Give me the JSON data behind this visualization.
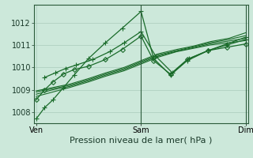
{
  "background_color": "#cce8da",
  "grid_color": "#aaccbb",
  "line_color": "#1a6b2a",
  "xlabel": "Pression niveau de la mer( hPa )",
  "xlabel_fontsize": 8,
  "tick_label_fontsize": 7,
  "xtick_labels": [
    "Ven",
    "Sam",
    "Dim"
  ],
  "xtick_positions": [
    0.0,
    0.5,
    1.0
  ],
  "ylim": [
    1007.5,
    1012.8
  ],
  "yticks": [
    1008,
    1009,
    1010,
    1011,
    1012
  ],
  "series": [
    {
      "x": [
        0.0,
        0.04,
        0.08,
        0.13,
        0.18,
        0.25,
        0.33,
        0.41,
        0.5,
        0.56,
        0.64,
        0.72,
        0.82,
        0.91,
        1.0
      ],
      "y": [
        1007.7,
        1008.2,
        1008.55,
        1009.1,
        1009.65,
        1010.4,
        1011.1,
        1011.75,
        1012.5,
        1010.4,
        1009.65,
        1010.3,
        1010.75,
        1011.05,
        1011.35
      ],
      "marker": "+",
      "ms": 4,
      "lw": 0.9
    },
    {
      "x": [
        0.04,
        0.09,
        0.14,
        0.19,
        0.27,
        0.35,
        0.42,
        0.5,
        0.57,
        0.65,
        0.73,
        0.82,
        0.91,
        1.0
      ],
      "y": [
        1009.55,
        1009.75,
        1009.95,
        1010.1,
        1010.35,
        1010.7,
        1011.1,
        1011.6,
        1010.5,
        1009.75,
        1010.4,
        1010.75,
        1011.0,
        1011.25
      ],
      "marker": "+",
      "ms": 4,
      "lw": 0.9
    },
    {
      "x": [
        0.0,
        0.04,
        0.08,
        0.13,
        0.18,
        0.25,
        0.33,
        0.41,
        0.5,
        0.56,
        0.64,
        0.72,
        0.82,
        0.91,
        1.0
      ],
      "y": [
        1008.55,
        1009.0,
        1009.35,
        1009.7,
        1009.9,
        1010.05,
        1010.35,
        1010.8,
        1011.4,
        1010.3,
        1009.7,
        1010.35,
        1010.75,
        1010.9,
        1011.05
      ],
      "marker": "D",
      "ms": 3,
      "lw": 0.9
    },
    {
      "x": [
        0.0,
        0.08,
        0.16,
        0.25,
        0.33,
        0.42,
        0.5,
        0.58,
        0.67,
        0.75,
        0.83,
        0.92,
        1.0
      ],
      "y": [
        1008.7,
        1008.9,
        1009.1,
        1009.35,
        1009.6,
        1009.85,
        1010.15,
        1010.45,
        1010.7,
        1010.85,
        1011.0,
        1011.1,
        1011.2
      ],
      "marker": null,
      "ms": 0,
      "lw": 0.8
    },
    {
      "x": [
        0.0,
        0.08,
        0.16,
        0.25,
        0.33,
        0.42,
        0.5,
        0.58,
        0.67,
        0.75,
        0.83,
        0.92,
        1.0
      ],
      "y": [
        1008.8,
        1009.0,
        1009.15,
        1009.4,
        1009.65,
        1009.9,
        1010.2,
        1010.5,
        1010.72,
        1010.88,
        1011.05,
        1011.18,
        1011.3
      ],
      "marker": null,
      "ms": 0,
      "lw": 0.8
    },
    {
      "x": [
        0.0,
        0.08,
        0.16,
        0.25,
        0.33,
        0.42,
        0.5,
        0.58,
        0.67,
        0.75,
        0.83,
        0.92,
        1.0
      ],
      "y": [
        1008.9,
        1009.05,
        1009.2,
        1009.45,
        1009.7,
        1009.95,
        1010.25,
        1010.55,
        1010.75,
        1010.92,
        1011.1,
        1011.25,
        1011.42
      ],
      "marker": null,
      "ms": 0,
      "lw": 0.8
    },
    {
      "x": [
        0.0,
        0.08,
        0.16,
        0.25,
        0.33,
        0.42,
        0.5,
        0.58,
        0.67,
        0.75,
        0.83,
        0.92,
        1.0
      ],
      "y": [
        1008.95,
        1009.1,
        1009.25,
        1009.5,
        1009.75,
        1010.0,
        1010.3,
        1010.6,
        1010.8,
        1010.95,
        1011.15,
        1011.3,
        1011.55
      ],
      "marker": null,
      "ms": 0,
      "lw": 0.8
    }
  ]
}
